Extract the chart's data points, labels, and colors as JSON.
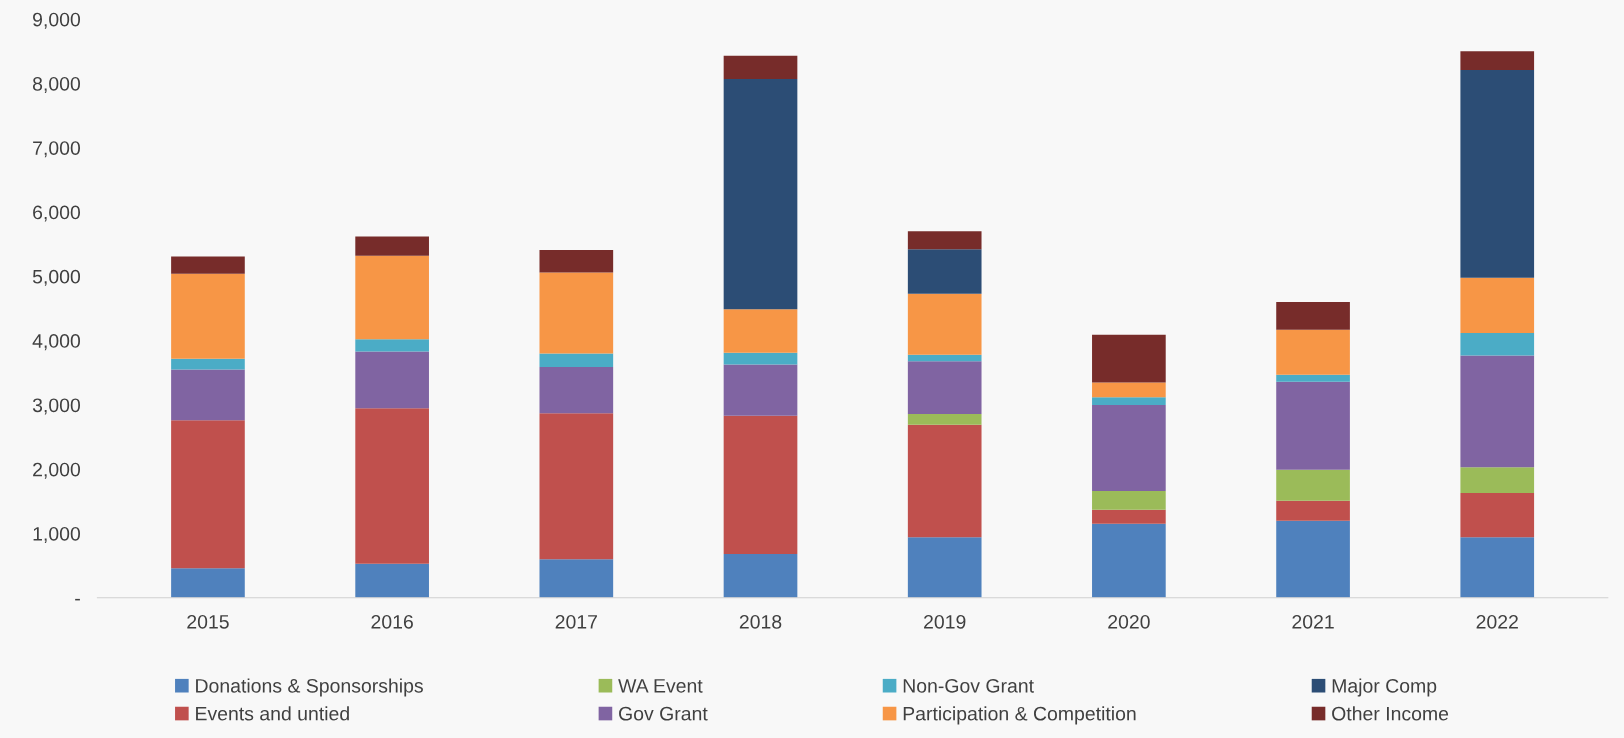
{
  "chart_data": {
    "type": "bar",
    "stacked": true,
    "categories": [
      "2015",
      "2016",
      "2017",
      "2018",
      "2019",
      "2020",
      "2021",
      "2022"
    ],
    "series": [
      {
        "name": "Donations & Sponsorships",
        "color": "#4f81bd",
        "values": [
          460,
          530,
          600,
          680,
          940,
          1150,
          1200,
          940
        ]
      },
      {
        "name": "Events and untied",
        "color": "#c0504d",
        "values": [
          2300,
          2420,
          2270,
          2150,
          1750,
          220,
          310,
          690
        ]
      },
      {
        "name": "WA Event",
        "color": "#9bbb59",
        "values": [
          0,
          0,
          0,
          0,
          170,
          290,
          480,
          400
        ]
      },
      {
        "name": "Gov Grant",
        "color": "#8064a2",
        "values": [
          790,
          880,
          720,
          800,
          820,
          1340,
          1370,
          1740
        ]
      },
      {
        "name": "Non-Gov Grant",
        "color": "#4bacc6",
        "values": [
          170,
          190,
          210,
          180,
          100,
          120,
          110,
          350
        ]
      },
      {
        "name": "Participation & Competition",
        "color": "#f79646",
        "values": [
          1320,
          1300,
          1260,
          680,
          950,
          230,
          700,
          860
        ]
      },
      {
        "name": "Major Comp",
        "color": "#2c4d75",
        "values": [
          0,
          0,
          0,
          3580,
          690,
          0,
          0,
          3230
        ]
      },
      {
        "name": "Other Income",
        "color": "#772c2a",
        "values": [
          270,
          300,
          350,
          360,
          280,
          740,
          430,
          290
        ]
      }
    ],
    "ylim": [
      0,
      9000
    ],
    "yticks": [
      {
        "value": 0,
        "label": "-"
      },
      {
        "value": 1000,
        "label": "1,000"
      },
      {
        "value": 2000,
        "label": "2,000"
      },
      {
        "value": 3000,
        "label": "3,000"
      },
      {
        "value": 4000,
        "label": "4,000"
      },
      {
        "value": 5000,
        "label": "5,000"
      },
      {
        "value": 6000,
        "label": "6,000"
      },
      {
        "value": 7000,
        "label": "7,000"
      },
      {
        "value": 8000,
        "label": "8,000"
      },
      {
        "value": 9000,
        "label": "9,000"
      }
    ],
    "grid": false,
    "legend": "bottom"
  }
}
